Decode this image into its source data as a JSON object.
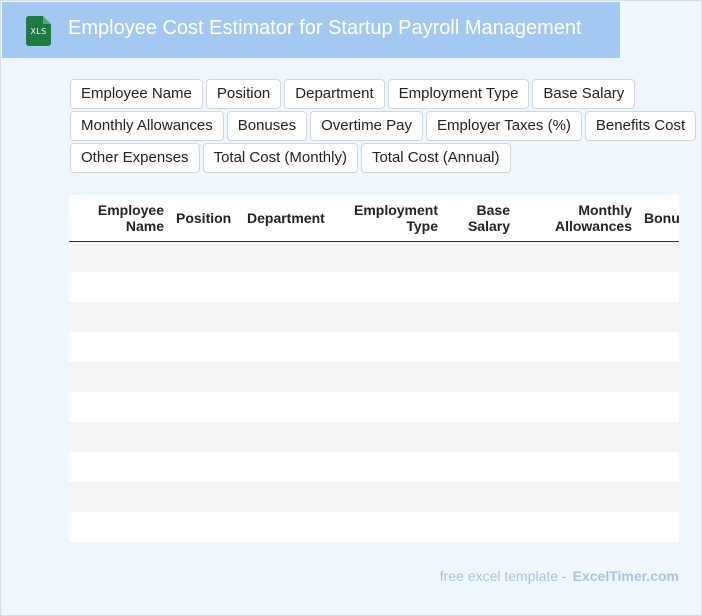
{
  "header": {
    "title": "Employee Cost Estimator for Startup Payroll Management",
    "icon_label": "XLS",
    "background": "#a3c9f0"
  },
  "fields": {
    "rows": [
      [
        "Employee Name",
        "Position",
        "Department",
        "Employment Type",
        "Base Salary"
      ],
      [
        "Monthly Allowances",
        "Bonuses",
        "Overtime Pay",
        "Employer Taxes (%)",
        "Benefits Cost"
      ],
      [
        "Other Expenses",
        "Total Cost (Monthly)",
        "Total Cost (Annual)"
      ]
    ]
  },
  "table": {
    "columns": [
      "Employee Name",
      "Position",
      "Department",
      "Employment Type",
      "Base Salary",
      "Monthly Allowances",
      "Bonuses"
    ],
    "row_count": 10
  },
  "footer": {
    "prefix": "free excel template -",
    "brand": "ExcelTimer.com"
  }
}
